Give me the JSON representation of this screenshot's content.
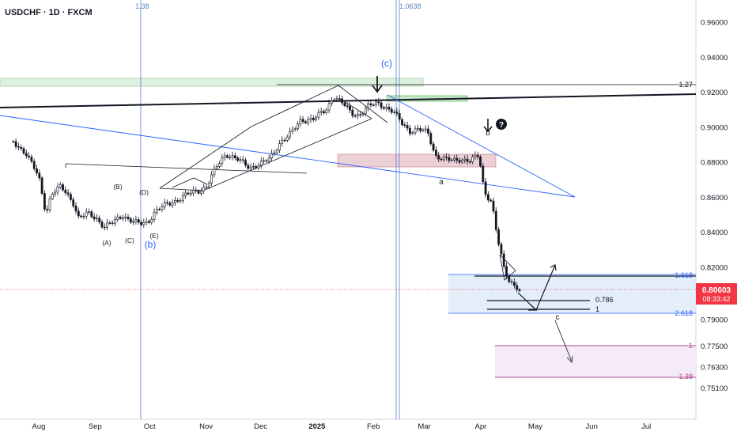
{
  "header": {
    "symbol": "USDCHF · 1D · FXCM"
  },
  "colors": {
    "up": "#131722",
    "down": "#131722",
    "blue": "#2962ff",
    "fib_line": "#5b7fc6",
    "green_zone": "#c8e6c9",
    "red_zone": "#e8c4cc",
    "blue_zone": "#dbe8f7",
    "purple_zone": "#f3e5f5",
    "purple_line": "#b04a8f",
    "price_tag": "#f23645"
  },
  "current_price": {
    "value": "0.80603",
    "timer": "08:33:42"
  },
  "chart_data": {
    "type": "candlestick",
    "symbol": "USDCHF",
    "timeframe": "1D",
    "ylim": [
      0.745,
      0.97
    ],
    "y_ticks": [
      "0.96000",
      "0.94000",
      "0.92000",
      "0.90000",
      "0.88000",
      "0.86000",
      "0.84000",
      "0.82000",
      "0.79000",
      "0.77500",
      "0.76300",
      "0.75100"
    ],
    "x_ticks": [
      "Aug",
      "Sep",
      "Oct",
      "Nov",
      "Dec",
      "2025",
      "Feb",
      "Mar",
      "Apr",
      "May",
      "Jun",
      "Jul"
    ],
    "close_path": [
      [
        "2024-07-18",
        0.892
      ],
      [
        "2024-07-25",
        0.885
      ],
      [
        "2024-08-01",
        0.872
      ],
      [
        "2024-08-05",
        0.851
      ],
      [
        "2024-08-08",
        0.862
      ],
      [
        "2024-08-13",
        0.866
      ],
      [
        "2024-08-16",
        0.863
      ],
      [
        "2024-08-20",
        0.857
      ],
      [
        "2024-08-23",
        0.848
      ],
      [
        "2024-08-28",
        0.851
      ],
      [
        "2024-09-02",
        0.848
      ],
      [
        "2024-09-06",
        0.843
      ],
      [
        "2024-09-11",
        0.846
      ],
      [
        "2024-09-16",
        0.85
      ],
      [
        "2024-09-20",
        0.847
      ],
      [
        "2024-09-25",
        0.845
      ],
      [
        "2024-09-30",
        0.846
      ],
      [
        "2024-10-04",
        0.852
      ],
      [
        "2024-10-10",
        0.856
      ],
      [
        "2024-10-15",
        0.858
      ],
      [
        "2024-10-22",
        0.862
      ],
      [
        "2024-10-28",
        0.864
      ],
      [
        "2024-11-01",
        0.866
      ],
      [
        "2024-11-07",
        0.878
      ],
      [
        "2024-11-12",
        0.885
      ],
      [
        "2024-11-18",
        0.882
      ],
      [
        "2024-11-25",
        0.877
      ],
      [
        "2024-12-02",
        0.88
      ],
      [
        "2024-12-06",
        0.882
      ],
      [
        "2024-12-12",
        0.892
      ],
      [
        "2024-12-18",
        0.897
      ],
      [
        "2024-12-23",
        0.904
      ],
      [
        "2024-12-30",
        0.905
      ],
      [
        "2025-01-06",
        0.91
      ],
      [
        "2025-01-10",
        0.918
      ],
      [
        "2025-01-15",
        0.914
      ],
      [
        "2025-01-20",
        0.908
      ],
      [
        "2025-01-24",
        0.907
      ],
      [
        "2025-01-29",
        0.912
      ],
      [
        "2025-02-03",
        0.914
      ],
      [
        "2025-02-07",
        0.912
      ],
      [
        "2025-02-12",
        0.909
      ],
      [
        "2025-02-17",
        0.902
      ],
      [
        "2025-02-21",
        0.898
      ],
      [
        "2025-02-26",
        0.899
      ],
      [
        "2025-03-03",
        0.897
      ],
      [
        "2025-03-07",
        0.884
      ],
      [
        "2025-03-12",
        0.882
      ],
      [
        "2025-03-17",
        0.881
      ],
      [
        "2025-03-21",
        0.882
      ],
      [
        "2025-03-26",
        0.881
      ],
      [
        "2025-03-31",
        0.884
      ],
      [
        "2025-04-03",
        0.863
      ],
      [
        "2025-04-07",
        0.858
      ],
      [
        "2025-04-10",
        0.838
      ],
      [
        "2025-04-14",
        0.818
      ],
      [
        "2025-04-17",
        0.812
      ],
      [
        "2025-04-21",
        0.809
      ],
      [
        "2025-04-23",
        0.806
      ]
    ],
    "levels": [
      {
        "label": "1.27",
        "value": 0.921
      },
      {
        "label": "1.618",
        "value": 0.8125
      },
      {
        "label": "0.786",
        "value": 0.8016
      },
      {
        "label": "1",
        "value": 0.7953
      },
      {
        "label": "2.618",
        "value": 0.7925
      },
      {
        "label": "1",
        "value": 0.776
      },
      {
        "label": "1.38",
        "value": 0.7615
      }
    ],
    "vertical_labels": [
      "1.38",
      "1.0638"
    ],
    "wave_labels": [
      "(A)",
      "(B)",
      "(C)",
      "(D)",
      "(E)",
      "(b)",
      "(c)",
      "a",
      "b",
      "c"
    ],
    "question_mark": "?"
  }
}
